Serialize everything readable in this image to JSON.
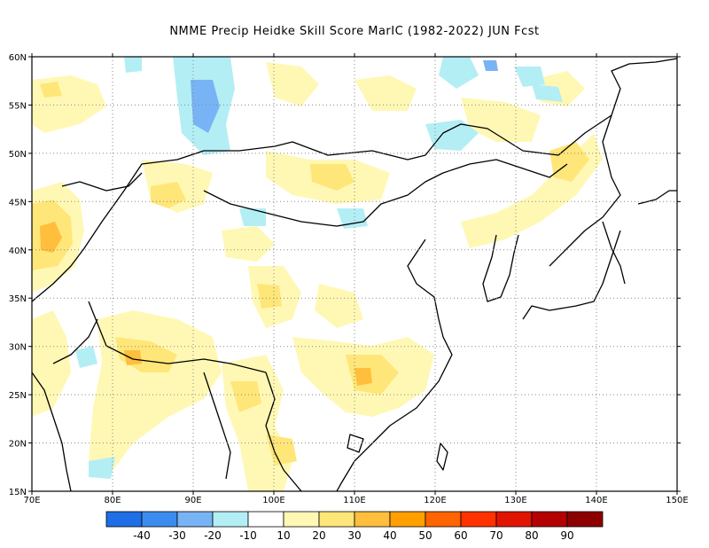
{
  "title": "NMME Precip Heidke Skill Score MarIC (1982-2022) JUN Fcst",
  "lat_labels": [
    "60N",
    "55N",
    "50N",
    "45N",
    "40N",
    "35N",
    "30N",
    "25N",
    "20N",
    "15N"
  ],
  "lon_labels": [
    "70E",
    "80E",
    "90E",
    "100E",
    "110E",
    "120E",
    "130E",
    "140E",
    "150E"
  ],
  "colorbar": {
    "colors": [
      "#1e6ee6",
      "#3c8cf0",
      "#78b4f5",
      "#b4eef5",
      "#ffffff",
      "#fff8b4",
      "#ffe678",
      "#ffbe3c",
      "#ffa000",
      "#ff6400",
      "#ff3200",
      "#e11400",
      "#b40000",
      "#8c0000"
    ],
    "labels": [
      "-40",
      "-30",
      "-20",
      "-10",
      "10",
      "20",
      "30",
      "40",
      "50",
      "60",
      "70",
      "80",
      "90"
    ]
  },
  "map": {
    "lon_range": [
      70,
      150
    ],
    "lat_range": [
      15,
      60
    ],
    "grid": true
  }
}
